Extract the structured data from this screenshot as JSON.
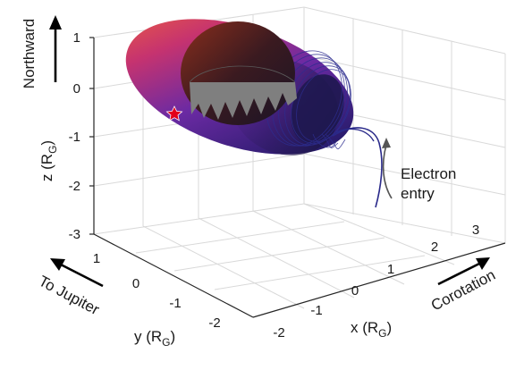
{
  "figure": {
    "z_axis": {
      "label_main": "z (R",
      "label_sub": "G",
      "label_close": ")",
      "ticks": [
        "1",
        "0",
        "-1",
        "-2",
        "-3"
      ]
    },
    "y_axis": {
      "label_main": "y (R",
      "label_sub": "G",
      "label_close": ")",
      "ticks": [
        "1",
        "0",
        "-1",
        "-2"
      ]
    },
    "x_axis": {
      "label_main": "x (R",
      "label_sub": "G",
      "label_close": ")",
      "ticks": [
        "-2",
        "-1",
        "0",
        "1",
        "2",
        "3"
      ]
    },
    "annotations": {
      "northward": "Northward",
      "to_jupiter": "To Jupiter",
      "corotation": "Corotation",
      "electron_entry_line1": "Electron",
      "electron_entry_line2": "entry"
    },
    "colors": {
      "surface_warm": "#e8533a",
      "surface_magenta": "#b0307a",
      "surface_purple": "#4a2a9e",
      "surface_dark": "#241a5e",
      "field_lines": "#2d2d8f",
      "body_cap": "#7f7f7f",
      "marker_star": "#e3001b"
    }
  }
}
